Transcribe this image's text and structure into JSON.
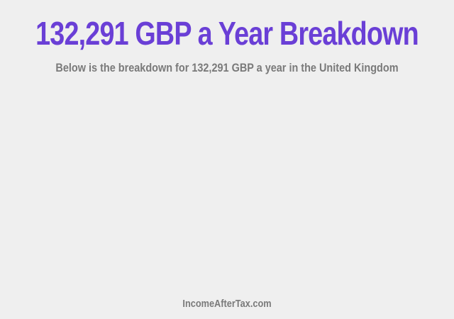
{
  "header": {
    "title": "132,291 GBP a Year Breakdown",
    "subtitle": "Below is the breakdown for 132,291 GBP a year in the United Kingdom"
  },
  "footer": {
    "site": "IncomeAfterTax.com"
  },
  "colors": {
    "title": "#6a3fd6",
    "text": "#7a7a7a",
    "background": "#efefef"
  }
}
